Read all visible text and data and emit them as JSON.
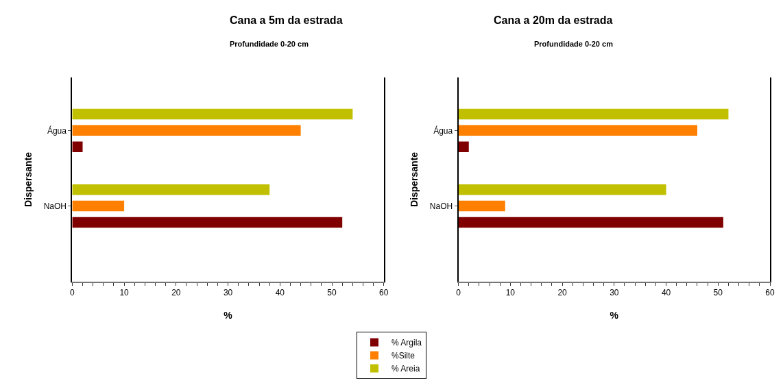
{
  "chart_data": [
    {
      "type": "bar",
      "orientation": "horizontal",
      "title": "Cana a 5m da estrada",
      "subtitle": "Profundidade 0-20 cm",
      "xlabel": "%",
      "ylabel": "Dispersante",
      "categories": [
        "Água",
        "NaOH"
      ],
      "series": [
        {
          "name": "% Argila",
          "color": "#800000",
          "values": [
            2,
            52
          ]
        },
        {
          "name": "%Silte",
          "color": "#ff8000",
          "values": [
            44,
            10
          ]
        },
        {
          "name": "% Areia",
          "color": "#c0c000",
          "values": [
            54,
            38
          ]
        }
      ],
      "xlim": [
        0,
        60
      ],
      "xticks": [
        0,
        {
          "value": 2,
          "label": null
        },
        {
          "value": 4,
          "label": null
        },
        {
          "value": 6,
          "label": null
        },
        {
          "value": 8,
          "label": null
        },
        10,
        {
          "value": 12,
          "label": null
        },
        {
          "value": 14,
          "label": null
        },
        {
          "value": 16,
          "label": null
        },
        {
          "value": 18,
          "label": null
        },
        20,
        {
          "value": 22,
          "label": null
        },
        {
          "value": 24,
          "label": null
        },
        {
          "value": 26,
          "label": null
        },
        {
          "value": 28,
          "label": null
        },
        30,
        {
          "value": 32,
          "label": null
        },
        {
          "value": 34,
          "label": null
        },
        {
          "value": 36,
          "label": null
        },
        {
          "value": 38,
          "label": null
        },
        40,
        {
          "value": 42,
          "label": null
        },
        {
          "value": 44,
          "label": null
        },
        {
          "value": 46,
          "label": null
        },
        {
          "value": 48,
          "label": null
        },
        50,
        {
          "value": 52,
          "label": null
        },
        {
          "value": 54,
          "label": null
        },
        {
          "value": 56,
          "label": null
        },
        {
          "value": 58,
          "label": null
        },
        60
      ],
      "legend": "bottom"
    },
    {
      "type": "bar",
      "orientation": "horizontal",
      "title": "Cana a 20m da estrada",
      "subtitle": "Profundidade 0-20 cm",
      "xlabel": "%",
      "ylabel": "Dispersante",
      "categories": [
        "Água",
        "NaOH"
      ],
      "series": [
        {
          "name": "% Argila",
          "color": "#800000",
          "values": [
            2,
            51
          ]
        },
        {
          "name": "%Silte",
          "color": "#ff8000",
          "values": [
            46,
            9
          ]
        },
        {
          "name": "% Areia",
          "color": "#c0c000",
          "values": [
            52,
            40
          ]
        }
      ],
      "xlim": [
        0,
        60
      ],
      "xticks": [
        0,
        {
          "value": 2,
          "label": null
        },
        {
          "value": 4,
          "label": null
        },
        {
          "value": 6,
          "label": null
        },
        {
          "value": 8,
          "label": null
        },
        10,
        {
          "value": 12,
          "label": null
        },
        {
          "value": 14,
          "label": null
        },
        {
          "value": 16,
          "label": null
        },
        {
          "value": 18,
          "label": null
        },
        20,
        {
          "value": 22,
          "label": null
        },
        {
          "value": 24,
          "label": null
        },
        {
          "value": 26,
          "label": null
        },
        {
          "value": 28,
          "label": null
        },
        30,
        {
          "value": 32,
          "label": null
        },
        {
          "value": 34,
          "label": null
        },
        {
          "value": 36,
          "label": null
        },
        {
          "value": 38,
          "label": null
        },
        40,
        {
          "value": 42,
          "label": null
        },
        {
          "value": 44,
          "label": null
        },
        {
          "value": 46,
          "label": null
        },
        {
          "value": 48,
          "label": null
        },
        50,
        {
          "value": 52,
          "label": null
        },
        {
          "value": 54,
          "label": null
        },
        {
          "value": 56,
          "label": null
        },
        {
          "value": 58,
          "label": null
        },
        60
      ],
      "legend": "bottom"
    }
  ]
}
